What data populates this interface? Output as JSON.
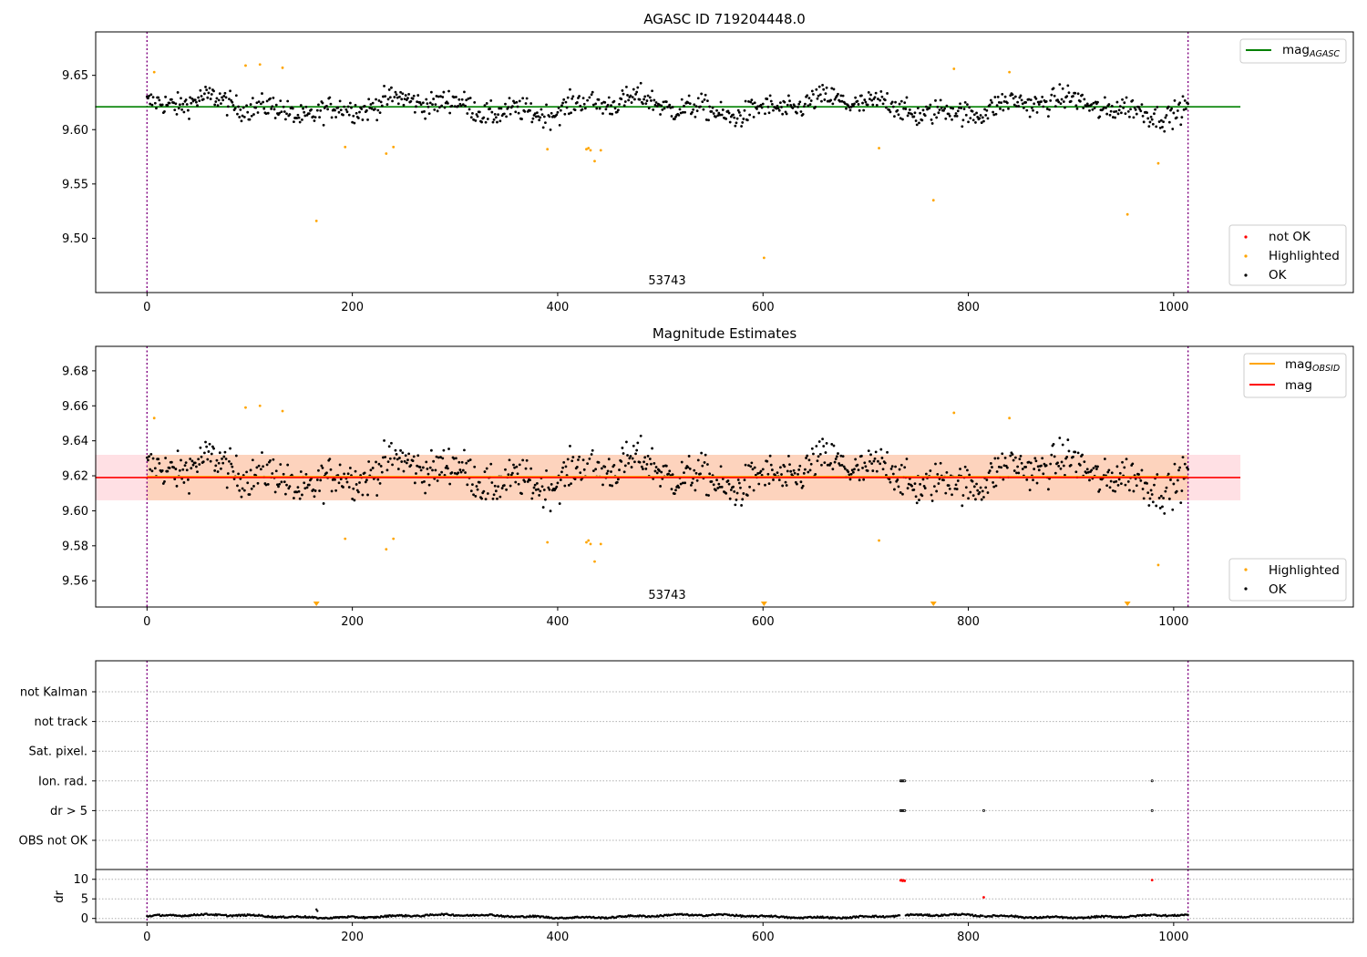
{
  "chart_data": [
    {
      "type": "scatter",
      "title": "AGASC ID 719204448.0",
      "xlim": [
        -50,
        1175
      ],
      "ylim": [
        9.45,
        9.69
      ],
      "xticks": [
        0,
        200,
        400,
        600,
        800,
        1000
      ],
      "yticks": [
        9.5,
        9.55,
        9.6,
        9.65
      ],
      "annotation": "53743",
      "grid": false,
      "legend_top": {
        "position": "top-right",
        "entries": [
          {
            "label": "mag",
            "subscript": "AGASC",
            "color": "#008000"
          }
        ]
      },
      "legend_bottom": {
        "position": "bottom-right",
        "entries": [
          {
            "label": "not OK",
            "color": "#ff0000"
          },
          {
            "label": "Highlighted",
            "color": "#ffa500"
          },
          {
            "label": "OK",
            "color": "#000000"
          }
        ]
      },
      "vlines": [
        0,
        1014
      ],
      "mag_agasc": 9.621,
      "line_x_range": [
        0,
        1065
      ],
      "series": [
        {
          "name": "Highlighted",
          "color": "#ffa500",
          "points": [
            [
              7,
              9.653
            ],
            [
              96,
              9.659
            ],
            [
              110,
              9.66
            ],
            [
              132,
              9.657
            ],
            [
              165,
              9.516
            ],
            [
              193,
              9.584
            ],
            [
              233,
              9.578
            ],
            [
              240,
              9.584
            ],
            [
              390,
              9.582
            ],
            [
              428,
              9.582
            ],
            [
              430,
              9.583
            ],
            [
              432,
              9.581
            ],
            [
              436,
              9.571
            ],
            [
              442,
              9.581
            ],
            [
              601,
              9.482
            ],
            [
              713,
              9.583
            ],
            [
              766,
              9.535
            ],
            [
              786,
              9.656
            ],
            [
              840,
              9.653
            ],
            [
              955,
              9.522
            ],
            [
              985,
              9.569
            ]
          ]
        },
        {
          "name": "OK",
          "color": "#000000",
          "generated": true,
          "n": 1015,
          "base": 9.621,
          "noise": 0.01
        }
      ]
    },
    {
      "type": "scatter",
      "title": "Magnitude Estimates",
      "xlim": [
        -50,
        1175
      ],
      "ylim": [
        9.545,
        9.694
      ],
      "xticks": [
        0,
        200,
        400,
        600,
        800,
        1000
      ],
      "yticks": [
        9.56,
        9.58,
        9.6,
        9.62,
        9.64,
        9.66,
        9.68
      ],
      "annotation": "53743",
      "grid": false,
      "legend_top": {
        "position": "top-right",
        "entries": [
          {
            "label": "mag",
            "subscript": "OBSID",
            "color": "#ffa500"
          },
          {
            "label": "mag",
            "color": "#ff0000"
          }
        ]
      },
      "legend_bottom": {
        "position": "bottom-right",
        "entries": [
          {
            "label": "Highlighted",
            "color": "#ffa500"
          },
          {
            "label": "OK",
            "color": "#000000"
          }
        ]
      },
      "vlines": [
        0,
        1014
      ],
      "mag": 9.619,
      "mag_band": [
        9.606,
        9.632
      ],
      "mag_obsid": 9.619,
      "mag_obsid_band": [
        9.606,
        9.632
      ],
      "line_x_range": [
        0,
        1065
      ],
      "obsid_x_range": [
        0,
        1014
      ],
      "offscale_markers_x": [
        165,
        601,
        766,
        955
      ],
      "series": [
        {
          "name": "Highlighted",
          "color": "#ffa500",
          "points": [
            [
              7,
              9.653
            ],
            [
              96,
              9.659
            ],
            [
              110,
              9.66
            ],
            [
              132,
              9.657
            ],
            [
              193,
              9.584
            ],
            [
              233,
              9.578
            ],
            [
              240,
              9.584
            ],
            [
              390,
              9.582
            ],
            [
              428,
              9.582
            ],
            [
              430,
              9.583
            ],
            [
              432,
              9.581
            ],
            [
              436,
              9.571
            ],
            [
              442,
              9.581
            ],
            [
              713,
              9.583
            ],
            [
              786,
              9.656
            ],
            [
              840,
              9.653
            ],
            [
              985,
              9.569
            ]
          ]
        },
        {
          "name": "OK",
          "color": "#000000",
          "generated": true
        }
      ]
    },
    {
      "type": "scatter",
      "title": "",
      "xlim": [
        -50,
        1175
      ],
      "categories": [
        "not Kalman",
        "not track",
        "Sat. pixel.",
        "Ion. rad.",
        "dr > 5",
        "OBS not OK"
      ],
      "flags": [
        {
          "category": "Ion. rad.",
          "x": [
            734,
            735,
            736,
            737,
            738,
            979
          ]
        },
        {
          "category": "dr > 5",
          "x": [
            734,
            735,
            736,
            737,
            738,
            815,
            979
          ]
        }
      ],
      "vlines": [
        0,
        1014
      ]
    },
    {
      "type": "scatter",
      "title": "",
      "xlim": [
        -50,
        1175
      ],
      "ylim": [
        -1,
        12.5
      ],
      "xticks": [
        0,
        200,
        400,
        600,
        800,
        1000
      ],
      "yticks": [
        0,
        5,
        10
      ],
      "ylabel": "dr",
      "grid": true,
      "vlines": [
        0,
        1014
      ],
      "series": [
        {
          "name": "dr",
          "color": "#000000",
          "generated": true,
          "n": 1015
        },
        {
          "name": "dr > 5",
          "color": "#ff0000",
          "points": [
            [
              734,
              9.7
            ],
            [
              735,
              9.8
            ],
            [
              736,
              9.6
            ],
            [
              737,
              9.7
            ],
            [
              738,
              9.6
            ],
            [
              815,
              5.4
            ],
            [
              979,
              9.8
            ]
          ]
        },
        {
          "name": "dr outlier",
          "color": "#000000",
          "points": [
            [
              165,
              2.3
            ],
            [
              166,
              1.9
            ]
          ]
        }
      ]
    }
  ]
}
